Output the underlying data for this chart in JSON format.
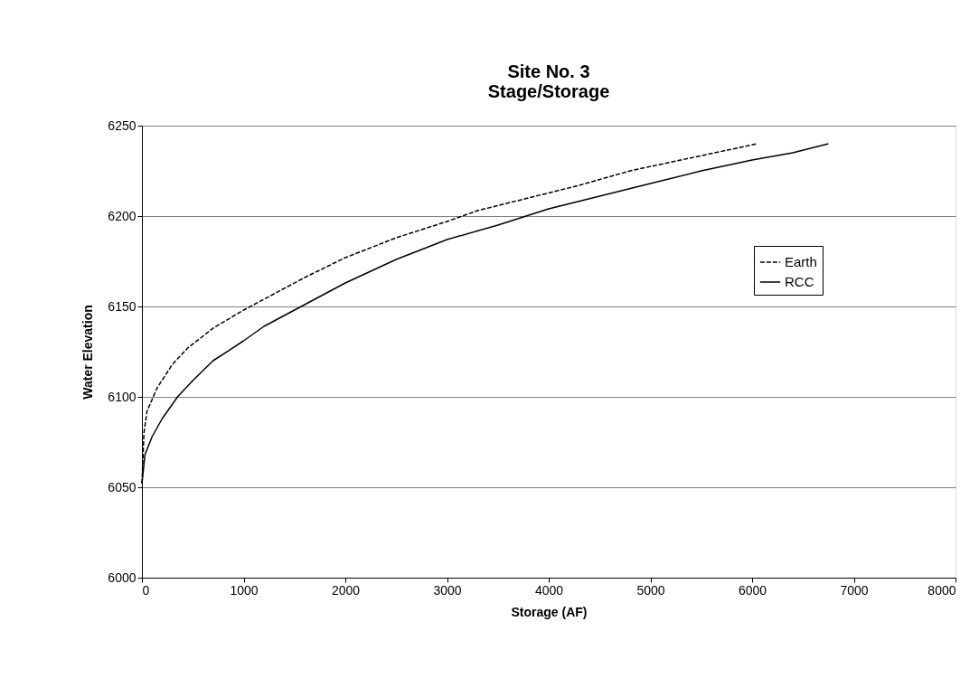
{
  "chart_data": {
    "type": "line",
    "title": [
      "Site No. 3",
      "Stage/Storage"
    ],
    "xlabel": "Storage (AF)",
    "ylabel": "Water Elevation",
    "xlim": [
      0,
      8000
    ],
    "xticks": [
      0,
      1000,
      2000,
      3000,
      4000,
      5000,
      6000,
      7000,
      8000
    ],
    "ylim": [
      6000,
      6250
    ],
    "yticks": [
      6000,
      6050,
      6100,
      6150,
      6200,
      6250
    ],
    "grid": "y",
    "legend": "right",
    "marker": "none",
    "series": [
      {
        "name": "Earth",
        "color": "#000000",
        "line_style": "dashed",
        "x": [
          0,
          20,
          50,
          150,
          300,
          450,
          700,
          1000,
          1300,
          1600,
          2000,
          2500,
          3000,
          3300,
          3800,
          4300,
          4800,
          5300,
          5800,
          6050
        ],
        "values": [
          6052,
          6080,
          6092,
          6105,
          6118,
          6127,
          6138,
          6148,
          6157,
          6166,
          6177,
          6188,
          6197,
          6203,
          6210,
          6217,
          6225,
          6231,
          6237,
          6240
        ]
      },
      {
        "name": "RCC",
        "color": "#000000",
        "line_style": "solid",
        "x": [
          0,
          30,
          100,
          200,
          350,
          500,
          700,
          1000,
          1200,
          1600,
          2000,
          2500,
          3000,
          3500,
          4000,
          4500,
          5000,
          5500,
          6000,
          6400,
          6750
        ],
        "values": [
          6052,
          6068,
          6078,
          6088,
          6100,
          6109,
          6120,
          6131,
          6139,
          6151,
          6163,
          6176,
          6187,
          6195,
          6204,
          6211,
          6218,
          6225,
          6231,
          6235,
          6240
        ]
      }
    ]
  }
}
